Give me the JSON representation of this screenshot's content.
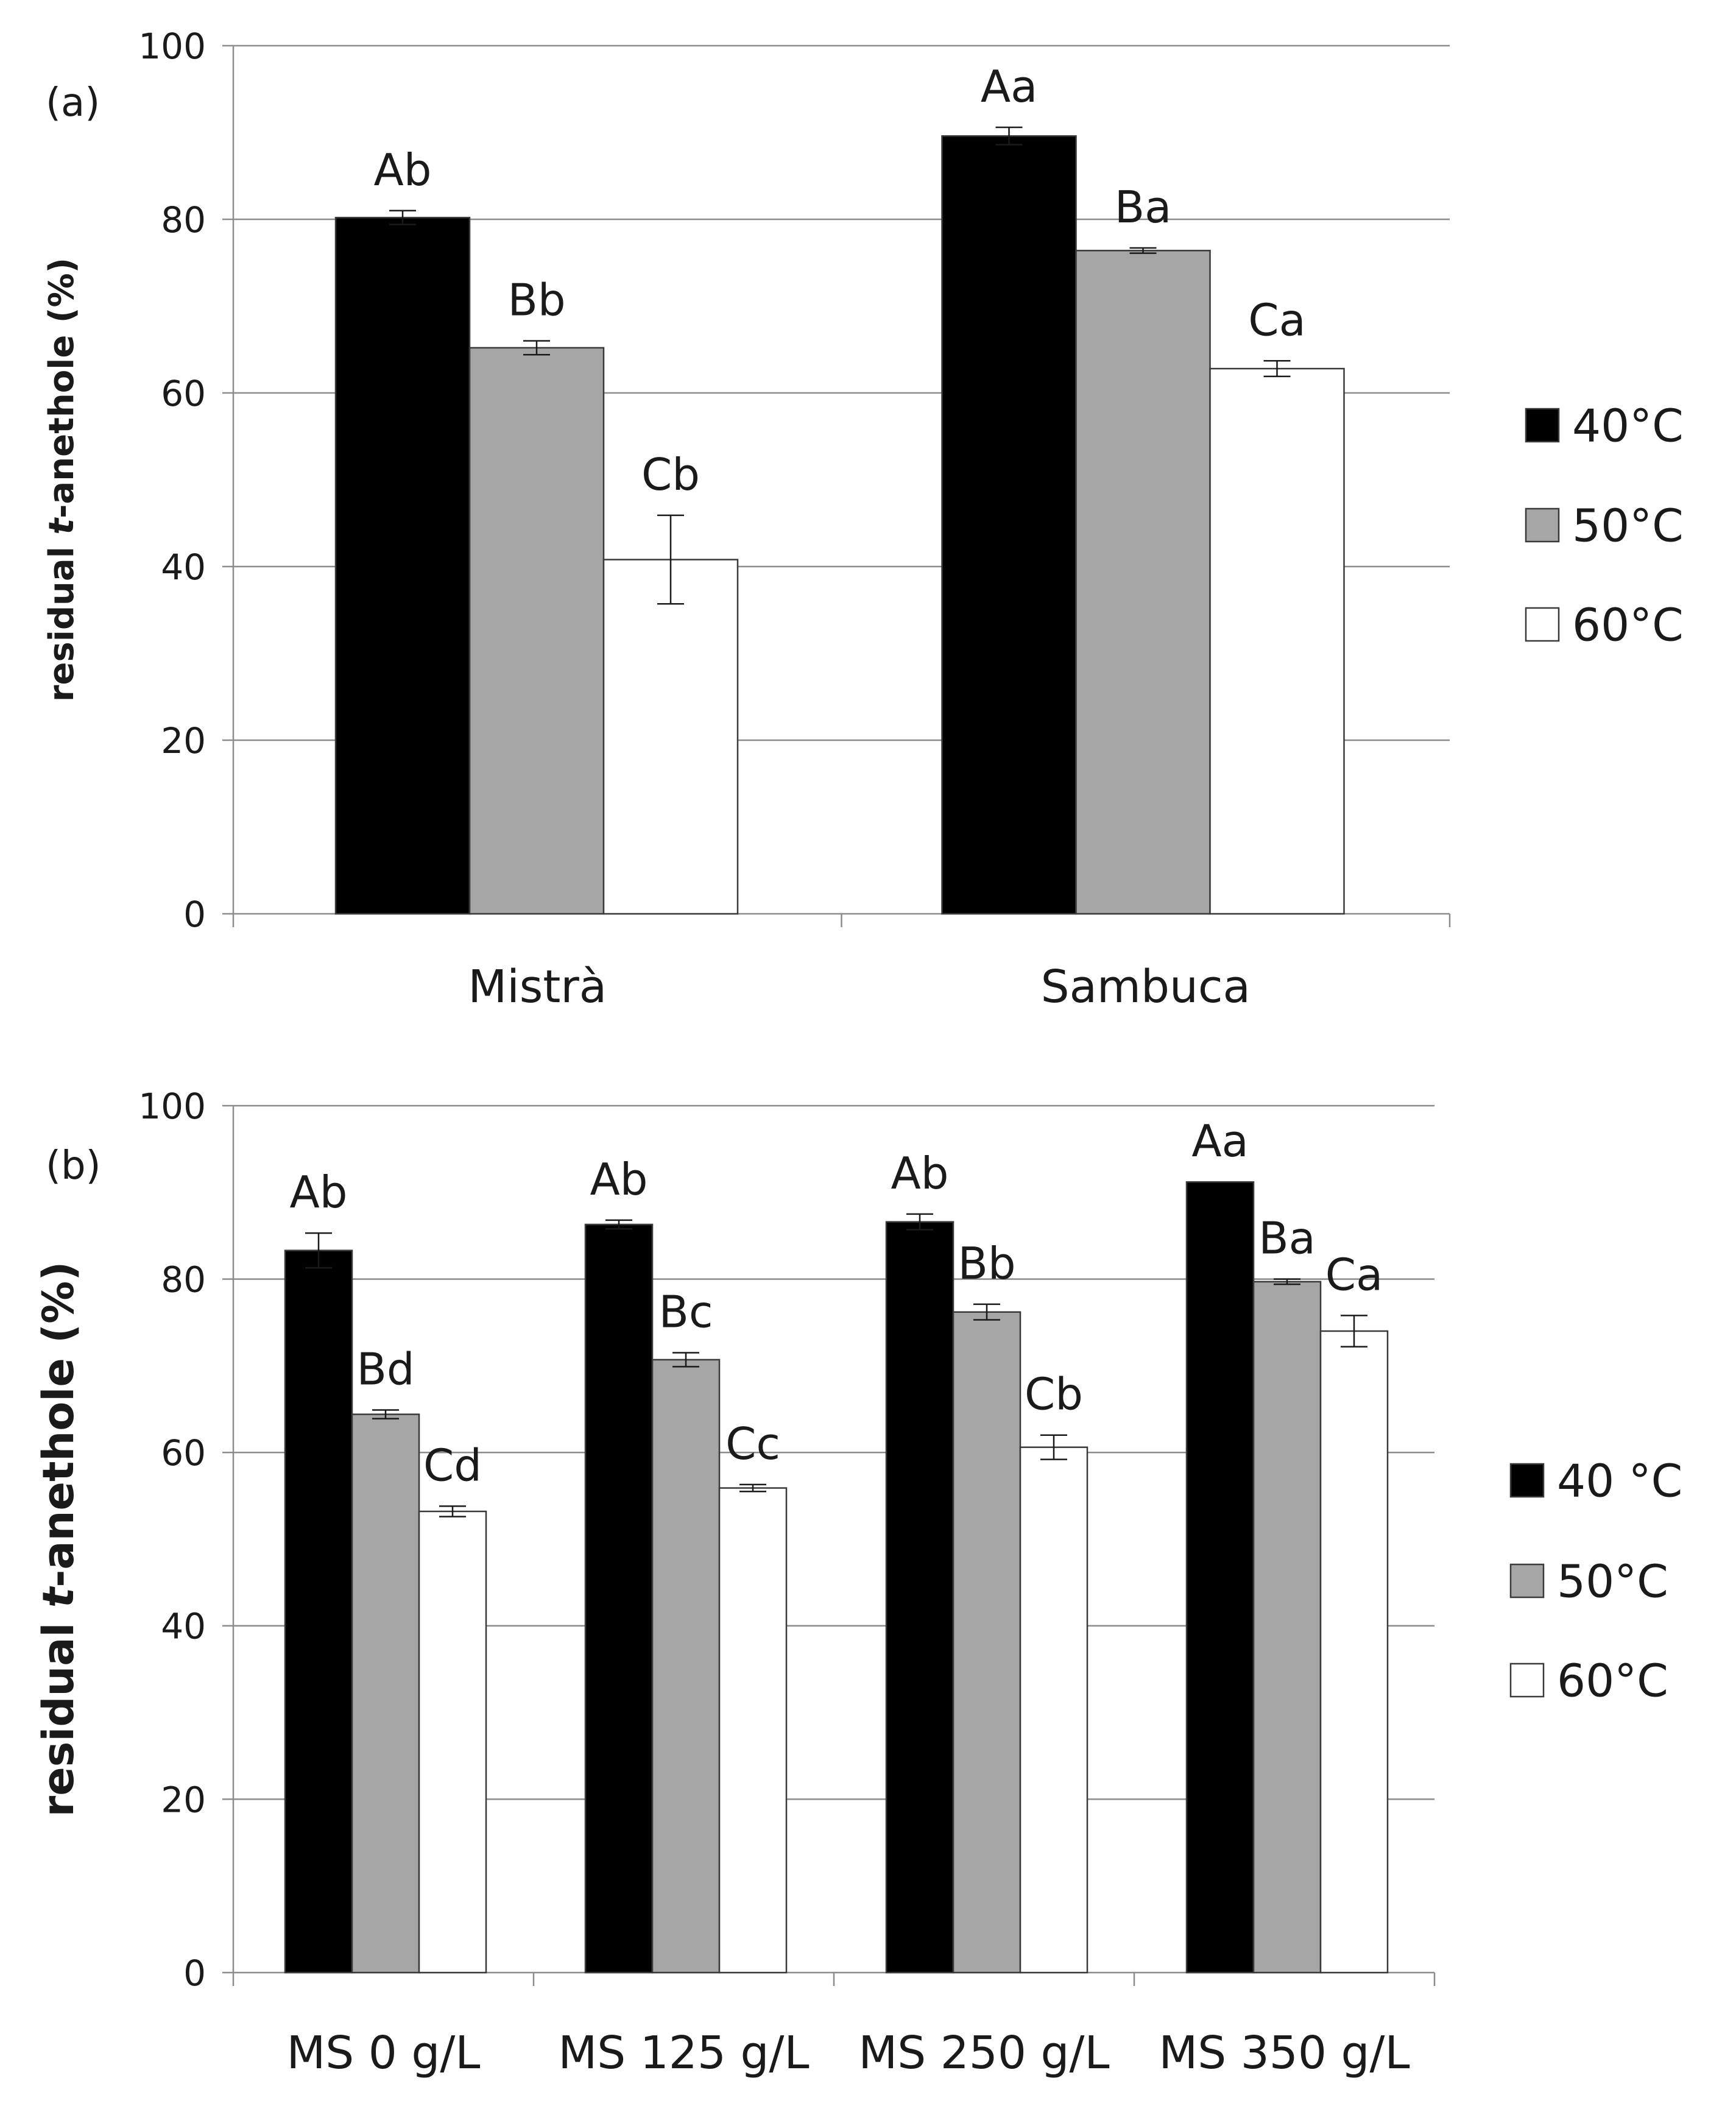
{
  "chart_data": [
    {
      "panel_label": "(a)",
      "type": "bar",
      "ylabel_prefix": "residual ",
      "ylabel_italic": "t",
      "ylabel_suffix": "-anethole (%)",
      "ylim": [
        0,
        100
      ],
      "yticks": [
        "0",
        "20",
        "40",
        "60",
        "80",
        "100"
      ],
      "grid": true,
      "legend_position": "right",
      "categories": [
        "Mistrà",
        "Sambuca"
      ],
      "series": [
        {
          "name": "40°C",
          "color": "#000000",
          "values": [
            80.2,
            89.6
          ],
          "errors": [
            0.8,
            1.0
          ],
          "labels": [
            "Ab",
            "Aa"
          ]
        },
        {
          "name": "50°C",
          "color": "#a6a6a6",
          "values": [
            65.2,
            76.4
          ],
          "errors": [
            0.8,
            0.3
          ],
          "labels": [
            "Bb",
            "Ba"
          ]
        },
        {
          "name": "60°C",
          "color": "#ffffff",
          "values": [
            40.8,
            62.8
          ],
          "errors": [
            5.1,
            0.9
          ],
          "labels": [
            "Cb",
            "Ca"
          ]
        }
      ]
    },
    {
      "panel_label": "(b)",
      "type": "bar",
      "ylabel_prefix": "residual ",
      "ylabel_italic": "t",
      "ylabel_suffix": "-anethole (%)",
      "ylim": [
        0,
        100
      ],
      "yticks": [
        "0",
        "20",
        "40",
        "60",
        "80",
        "100"
      ],
      "grid": true,
      "legend_position": "right",
      "categories": [
        "MS 0 g/L",
        "MS 125 g/L",
        "MS 250 g/L",
        "MS 350 g/L"
      ],
      "series": [
        {
          "name": "40 °C",
          "color": "#000000",
          "values": [
            83.3,
            86.3,
            86.6,
            91.2
          ],
          "errors": [
            2.0,
            0.5,
            0.9,
            0.0
          ],
          "labels": [
            "Ab",
            "Ab",
            "Ab",
            "Aa"
          ]
        },
        {
          "name": "50°C",
          "color": "#a6a6a6",
          "values": [
            64.4,
            70.7,
            76.2,
            79.7
          ],
          "errors": [
            0.5,
            0.8,
            0.9,
            0.3
          ],
          "labels": [
            "Bd",
            "Bc",
            "Bb",
            "Ba"
          ]
        },
        {
          "name": "60°C",
          "color": "#ffffff",
          "values": [
            53.2,
            55.9,
            60.6,
            74.0
          ],
          "errors": [
            0.6,
            0.4,
            1.4,
            1.8
          ],
          "labels": [
            "Cd",
            "Cc",
            "Cb",
            "Ca"
          ]
        }
      ]
    }
  ]
}
